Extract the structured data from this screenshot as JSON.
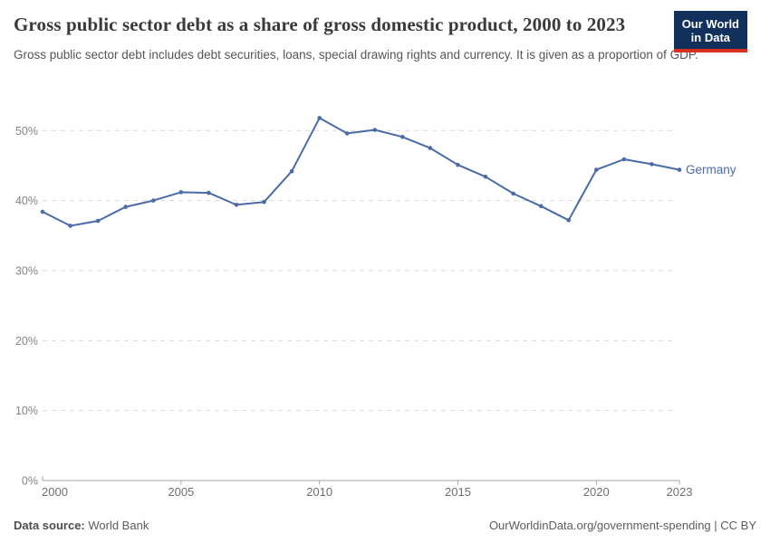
{
  "header": {
    "title": "Gross public sector debt as a share of gross domestic product, 2000 to 2023",
    "subtitle": "Gross public sector debt includes debt securities, loans, special drawing rights and currency. It is given as a proportion of GDP.",
    "logo": {
      "line1": "Our World",
      "line2": "in Data"
    }
  },
  "theme": {
    "line_color": "#4b6aa8",
    "entity_label_color": "#4b6aa8",
    "logo_bg": "#12305c",
    "logo_bar": "#d8301f",
    "gridline_color": "#d9d9d9",
    "axis_color": "#a6a6a6",
    "y_label_color": "#848484",
    "x_label_color": "#6e6e6e"
  },
  "chart_data": {
    "type": "line",
    "title": "Gross public sector debt as a share of gross domestic product, 2000 to 2023",
    "x": [
      2000,
      2001,
      2002,
      2003,
      2004,
      2005,
      2006,
      2007,
      2008,
      2009,
      2010,
      2011,
      2012,
      2013,
      2014,
      2015,
      2016,
      2017,
      2018,
      2019,
      2020,
      2021,
      2022,
      2023
    ],
    "series": [
      {
        "name": "Germany",
        "values": [
          38.4,
          36.4,
          37.1,
          39.1,
          40.0,
          41.2,
          41.1,
          39.4,
          39.8,
          44.2,
          51.8,
          49.6,
          50.1,
          49.1,
          47.5,
          45.1,
          43.4,
          41.0,
          39.2,
          37.2,
          44.4,
          45.9,
          45.2,
          44.4
        ]
      }
    ],
    "xlabel": "",
    "ylabel": "",
    "xlim": [
      2000,
      2023
    ],
    "ylim": [
      0,
      52.5
    ],
    "x_ticks": [
      2000,
      2005,
      2010,
      2015,
      2020,
      2023
    ],
    "y_ticks": [
      0,
      10,
      20,
      30,
      40,
      50
    ],
    "y_tick_suffix": "%",
    "grid": "horizontal-dashed",
    "legend": "inline-end-label",
    "entity_label": "Germany"
  },
  "footer": {
    "datasource_label": "Data source:",
    "datasource_value": " World Bank",
    "rights": "OurWorldinData.org/government-spending | CC BY"
  }
}
